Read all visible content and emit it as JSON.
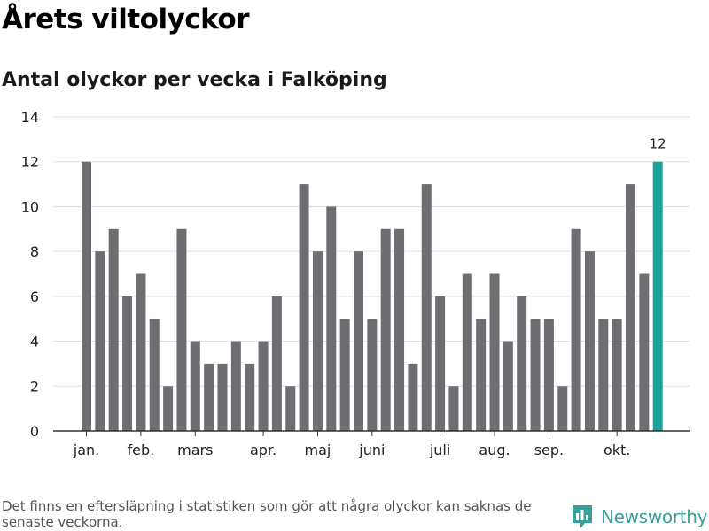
{
  "header": {
    "title": "Årets viltolyckor",
    "subtitle": "Antal olyckor per vecka i Falköping"
  },
  "footer": {
    "note": "Det finns en eftersläpning i statistiken som gör att några olyckor kan saknas de senaste veckorna.",
    "brand": "Newsworthy",
    "logo_icon": "bar-chart-logo-icon"
  },
  "colors": {
    "bar": "#6e6d72",
    "highlight": "#1aa39a",
    "grid": "#dddddd",
    "axis": "#333333",
    "brand": "#3a9e9a"
  },
  "chart_data": {
    "type": "bar",
    "title": "Antal olyckor per vecka i Falköping",
    "xlabel": "",
    "ylabel": "",
    "ylim": [
      0,
      14
    ],
    "yticks": [
      0,
      2,
      4,
      6,
      8,
      10,
      12,
      14
    ],
    "grid": true,
    "weeks": [
      1,
      2,
      3,
      4,
      5,
      6,
      7,
      8,
      9,
      10,
      11,
      12,
      13,
      14,
      15,
      16,
      17,
      18,
      19,
      20,
      21,
      22,
      23,
      24,
      25,
      26,
      27,
      28,
      29,
      30,
      31,
      32,
      33,
      34,
      35,
      36,
      37,
      38,
      39,
      40,
      41,
      42,
      43
    ],
    "values": [
      12,
      8,
      9,
      6,
      7,
      5,
      2,
      9,
      4,
      3,
      3,
      4,
      3,
      4,
      6,
      2,
      11,
      8,
      10,
      5,
      8,
      5,
      9,
      9,
      3,
      11,
      6,
      2,
      7,
      5,
      7,
      4,
      6,
      5,
      5,
      2,
      9,
      8,
      5,
      5,
      11,
      7,
      12
    ],
    "highlight_index": 42,
    "highlight_label": "12",
    "month_labels": [
      {
        "label": "jan.",
        "week": 1
      },
      {
        "label": "feb.",
        "week": 5
      },
      {
        "label": "mars",
        "week": 9
      },
      {
        "label": "apr.",
        "week": 14
      },
      {
        "label": "maj",
        "week": 18
      },
      {
        "label": "juni",
        "week": 22
      },
      {
        "label": "juli",
        "week": 27
      },
      {
        "label": "aug.",
        "week": 31
      },
      {
        "label": "sep.",
        "week": 35
      },
      {
        "label": "okt.",
        "week": 40
      }
    ]
  }
}
